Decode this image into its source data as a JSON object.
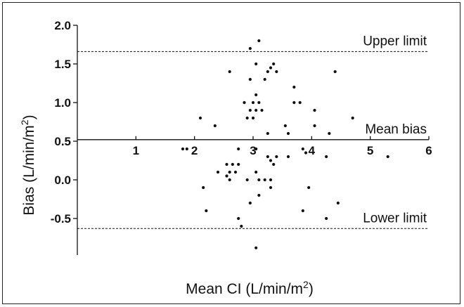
{
  "chart_data": {
    "type": "scatter",
    "title": "",
    "xlabel": "Mean CI (L/min/m",
    "xlabel_sup": "2",
    "xlabel_end": ")",
    "ylabel": "Bias (L/min/m",
    "ylabel_sup": "2",
    "ylabel_end": ")",
    "xlim": [
      0,
      6
    ],
    "ylim": [
      -0.9,
      2.0
    ],
    "x_axis_at_y": 0.52,
    "x_ticks": [
      "1",
      "2",
      "3",
      "4",
      "5",
      "6"
    ],
    "x_tick_values": [
      1,
      2,
      3,
      4,
      5,
      6
    ],
    "y_ticks": [
      "2.0",
      "1.5",
      "1.0",
      "0.5",
      "0.0",
      "-0.5"
    ],
    "y_tick_values": [
      2.0,
      1.5,
      1.0,
      0.5,
      0.0,
      -0.5
    ],
    "grid": false,
    "reference_lines": [
      {
        "label": "Upper limit",
        "y": 1.66,
        "style": "dashed"
      },
      {
        "label": "Mean bias",
        "y": 0.52,
        "style": "solid"
      },
      {
        "label": "Lower limit",
        "y": -0.63,
        "style": "dashed"
      }
    ],
    "points": [
      [
        3.1,
        1.8
      ],
      [
        2.95,
        1.7
      ],
      [
        3.05,
        1.5
      ],
      [
        3.35,
        1.5
      ],
      [
        3.3,
        1.45
      ],
      [
        2.6,
        1.4
      ],
      [
        3.25,
        1.4
      ],
      [
        3.4,
        1.4
      ],
      [
        4.4,
        1.4
      ],
      [
        2.95,
        1.3
      ],
      [
        3.2,
        1.3
      ],
      [
        3.7,
        1.2
      ],
      [
        3.05,
        1.1
      ],
      [
        2.85,
        1.0
      ],
      [
        3.0,
        1.0
      ],
      [
        3.1,
        1.0
      ],
      [
        3.7,
        1.0
      ],
      [
        3.8,
        1.0
      ],
      [
        2.95,
        0.9
      ],
      [
        3.05,
        0.9
      ],
      [
        3.15,
        0.9
      ],
      [
        4.05,
        0.9
      ],
      [
        2.9,
        0.8
      ],
      [
        3.0,
        0.8
      ],
      [
        2.1,
        0.8
      ],
      [
        4.7,
        0.8
      ],
      [
        2.35,
        0.7
      ],
      [
        3.55,
        0.7
      ],
      [
        4.05,
        0.7
      ],
      [
        3.6,
        0.6
      ],
      [
        3.25,
        0.6
      ],
      [
        4.3,
        0.6
      ],
      [
        3.05,
        0.4
      ],
      [
        2.75,
        0.4
      ],
      [
        1.8,
        0.4
      ],
      [
        1.87,
        0.4
      ],
      [
        3.25,
        0.3
      ],
      [
        3.4,
        0.3
      ],
      [
        3.6,
        0.3
      ],
      [
        3.3,
        0.25
      ],
      [
        3.85,
        0.4
      ],
      [
        3.9,
        0.35
      ],
      [
        2.65,
        0.2
      ],
      [
        2.55,
        0.2
      ],
      [
        2.75,
        0.2
      ],
      [
        3.35,
        0.2
      ],
      [
        2.4,
        0.1
      ],
      [
        2.6,
        0.1
      ],
      [
        2.55,
        0.05
      ],
      [
        2.7,
        0.1
      ],
      [
        3.05,
        0.1
      ],
      [
        2.6,
        0.0
      ],
      [
        2.9,
        0.0
      ],
      [
        3.1,
        0.0
      ],
      [
        3.2,
        0.0
      ],
      [
        3.3,
        0.0
      ],
      [
        4.25,
        0.3
      ],
      [
        5.3,
        0.3
      ],
      [
        2.15,
        -0.1
      ],
      [
        3.3,
        -0.1
      ],
      [
        3.95,
        -0.1
      ],
      [
        3.1,
        -0.2
      ],
      [
        2.95,
        -0.3
      ],
      [
        4.45,
        -0.3
      ],
      [
        2.2,
        -0.4
      ],
      [
        3.85,
        -0.4
      ],
      [
        2.75,
        -0.5
      ],
      [
        4.25,
        -0.5
      ],
      [
        2.8,
        -0.6
      ],
      [
        3.05,
        -0.88
      ]
    ]
  }
}
